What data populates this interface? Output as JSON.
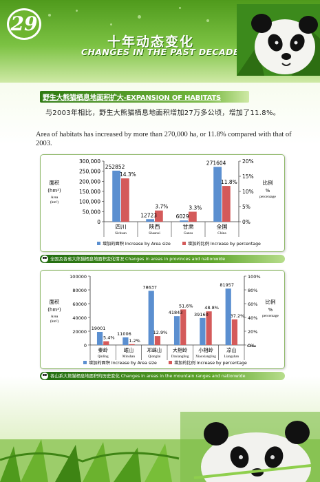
{
  "page_number": "29",
  "title_cn": "十年动态变化",
  "title_en": "CHANGES IN THE PAST DECADE",
  "section_title": "野生大熊猫栖息地面积扩大-EXPANSION OF HABITATS",
  "body_cn": "与2003年相比，野生大熊猫栖息地面积增加27万多公顷，增加了11.8%。",
  "body_en": "Area of habitats has increased by more than 270,000 ha, or 11.8% compared with that of 2003.",
  "colors": {
    "bar_area": "#5b8fd0",
    "bar_percent": "#d45a5a",
    "brand_green": "#5ea52a"
  },
  "chart_data": [
    {
      "type": "bar",
      "ylabel_left": {
        "cn": "面积",
        "unit": "(hm²)",
        "en": "Area",
        "en_unit": "(hm²)"
      },
      "ylabel_right": {
        "cn": "比例",
        "unit": "%",
        "en": "percentage"
      },
      "ylim_left": [
        0,
        300000
      ],
      "ylim_right": [
        0,
        20
      ],
      "ticks_left": [
        "0",
        "50,000",
        "100,000",
        "150,000",
        "200,000",
        "250,000",
        "300,000"
      ],
      "ticks_right": [
        "0%",
        "5%",
        "10%",
        "15%",
        "20%"
      ],
      "categories": [
        {
          "cn": "四川",
          "en": "Sichuan"
        },
        {
          "cn": "陕西",
          "en": "Shaanxi"
        },
        {
          "cn": "甘肃",
          "en": "Gansu"
        },
        {
          "cn": "全国",
          "en": "China"
        }
      ],
      "series": [
        {
          "name": "增加的面积 Increase by Area size",
          "axis": "left",
          "values": [
            252852,
            12723,
            6029,
            271604
          ],
          "labels": [
            "252852",
            "12723",
            "6029",
            "271604"
          ]
        },
        {
          "name": "增加的比例 Increase by percentage",
          "axis": "right",
          "values": [
            14.3,
            3.7,
            3.3,
            11.8
          ],
          "labels": [
            "14.3%",
            "3.7%",
            "3.3%",
            "11.8%"
          ]
        }
      ],
      "grid": false,
      "legend": "bottom",
      "caption": "全国及各省大熊猫栖息地面积变化情况  Changes in areas in provinces and nationwide"
    },
    {
      "type": "bar",
      "ylabel_left": {
        "cn": "面积",
        "unit": "(hm²)",
        "en": "Area",
        "en_unit": "(hm²)"
      },
      "ylabel_right": {
        "cn": "比例",
        "unit": "%",
        "en": "percentage"
      },
      "ylim_left": [
        0,
        100000
      ],
      "ylim_right": [
        0,
        100
      ],
      "ticks_left": [
        "0",
        "20000",
        "40000",
        "60000",
        "80000",
        "100000"
      ],
      "ticks_right": [
        "0%",
        "20%",
        "40%",
        "60%",
        "80%",
        "100%"
      ],
      "extra_label": "China",
      "categories": [
        {
          "cn": "秦岭",
          "en": "Qinling"
        },
        {
          "cn": "岷山",
          "en": "Minshan"
        },
        {
          "cn": "邛崃山",
          "en": "Qionglai"
        },
        {
          "cn": "大相岭",
          "en": "Daxiangling"
        },
        {
          "cn": "小相岭",
          "en": "Xiaoxiangling"
        },
        {
          "cn": "凉山",
          "en": "Liangshan"
        }
      ],
      "series": [
        {
          "name": "增加的面积 Increase by Area size",
          "axis": "left",
          "values": [
            19001,
            11006,
            78637,
            41843,
            39160,
            81957
          ],
          "labels": [
            "19001",
            "11006",
            "78637",
            "41843",
            "39160",
            "81957"
          ]
        },
        {
          "name": "增加的比例 Increase by percentage",
          "axis": "right",
          "values": [
            5.4,
            1.2,
            12.9,
            51.6,
            48.8,
            37.2
          ],
          "labels": [
            "5.4%",
            "1.2%",
            "12.9%",
            "51.6%",
            "48.8%",
            "37.2%"
          ]
        }
      ],
      "grid": false,
      "legend": "bottom",
      "caption": "各山系大熊猫栖息地面积的历史变化  Changes in areas in the mountain ranges and nationwide"
    }
  ]
}
